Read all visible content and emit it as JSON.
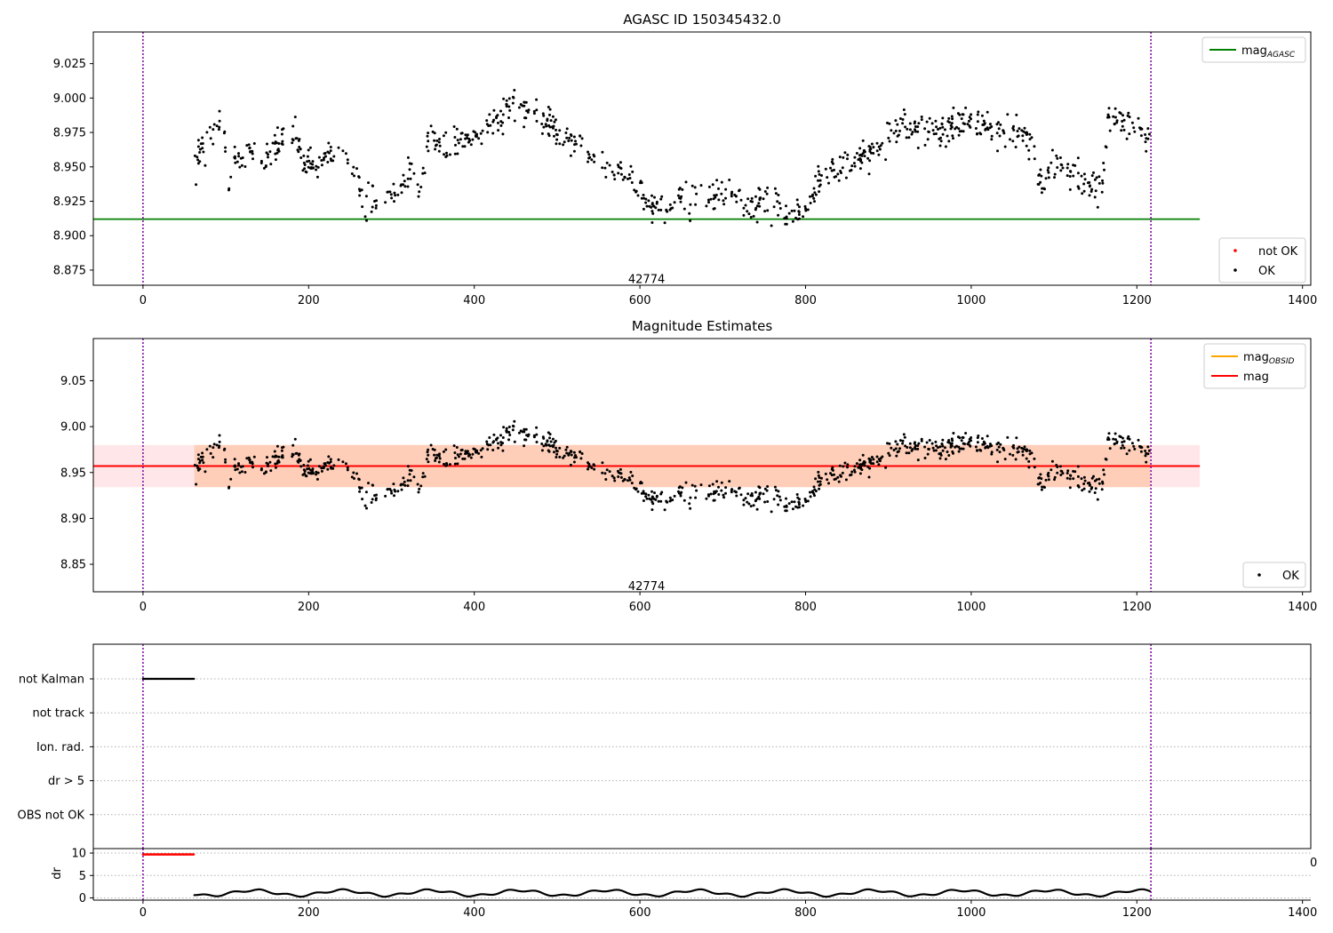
{
  "chart_data": [
    {
      "type": "scatter",
      "title": "AGASC ID 150345432.0",
      "xlabel": "",
      "ylabel": "",
      "xlim": [
        -60,
        1410
      ],
      "ylim": [
        8.864,
        9.048
      ],
      "xticks": [
        0,
        200,
        400,
        600,
        800,
        1000,
        1200,
        1400
      ],
      "yticks": [
        8.875,
        8.9,
        8.925,
        8.95,
        8.975,
        9.0,
        9.025
      ],
      "ytick_labels": [
        "8.875",
        "8.900",
        "8.925",
        "8.950",
        "8.975",
        "9.000",
        "9.025"
      ],
      "grid": false,
      "vlines": [
        0,
        1217
      ],
      "hlines": [
        {
          "name": "magAGASC",
          "y": 8.912,
          "x": [
            -60,
            1276
          ],
          "color": "#008000"
        }
      ],
      "annotation": {
        "text": "42774",
        "x": 608,
        "y": 8.869
      },
      "legends": [
        {
          "placement": "top-right",
          "entries": [
            {
              "label": "mag",
              "sub": "AGASC",
              "color": "#008000",
              "kind": "line"
            }
          ]
        },
        {
          "placement": "bottom-right",
          "entries": [
            {
              "label": "not OK",
              "color": "#ff0000",
              "kind": "dot"
            },
            {
              "label": "OK",
              "color": "#000000",
              "kind": "dot"
            }
          ]
        }
      ],
      "series": [
        {
          "name": "OK",
          "color": "#000000",
          "trend": [
            [
              62,
              8.94
            ],
            [
              70,
              8.968
            ],
            [
              90,
              8.978
            ],
            [
              97,
              8.992
            ],
            [
              102,
              8.925
            ],
            [
              110,
              8.955
            ],
            [
              130,
              8.958
            ],
            [
              150,
              8.96
            ],
            [
              180,
              8.975
            ],
            [
              195,
              8.952
            ],
            [
              210,
              8.95
            ],
            [
              230,
              8.962
            ],
            [
              245,
              8.96
            ],
            [
              255,
              8.945
            ],
            [
              270,
              8.92
            ],
            [
              290,
              8.928
            ],
            [
              310,
              8.935
            ],
            [
              325,
              8.945
            ],
            [
              335,
              8.93
            ],
            [
              345,
              8.972
            ],
            [
              360,
              8.965
            ],
            [
              390,
              8.968
            ],
            [
              410,
              8.975
            ],
            [
              430,
              8.985
            ],
            [
              450,
              8.995
            ],
            [
              470,
              8.99
            ],
            [
              490,
              8.98
            ],
            [
              510,
              8.97
            ],
            [
              530,
              8.965
            ],
            [
              545,
              8.955
            ],
            [
              560,
              8.945
            ],
            [
              580,
              8.945
            ],
            [
              600,
              8.935
            ],
            [
              615,
              8.92
            ],
            [
              640,
              8.925
            ],
            [
              660,
              8.925
            ],
            [
              690,
              8.93
            ],
            [
              710,
              8.93
            ],
            [
              730,
              8.92
            ],
            [
              750,
              8.93
            ],
            [
              770,
              8.915
            ],
            [
              790,
              8.918
            ],
            [
              800,
              8.922
            ],
            [
              820,
              8.945
            ],
            [
              840,
              8.95
            ],
            [
              860,
              8.955
            ],
            [
              880,
              8.962
            ],
            [
              900,
              8.97
            ],
            [
              920,
              8.98
            ],
            [
              950,
              8.975
            ],
            [
              980,
              8.98
            ],
            [
              1000,
              8.985
            ],
            [
              1020,
              8.978
            ],
            [
              1040,
              8.972
            ],
            [
              1060,
              8.975
            ],
            [
              1075,
              8.968
            ],
            [
              1085,
              8.935
            ],
            [
              1100,
              8.955
            ],
            [
              1120,
              8.945
            ],
            [
              1140,
              8.935
            ],
            [
              1158,
              8.935
            ],
            [
              1165,
              8.988
            ],
            [
              1180,
              8.985
            ],
            [
              1200,
              8.98
            ],
            [
              1216,
              8.97
            ]
          ],
          "noise": 0.008,
          "count": 920
        }
      ]
    },
    {
      "type": "scatter",
      "title": "Magnitude Estimates",
      "xlabel": "",
      "ylabel": "",
      "xlim": [
        -60,
        1410
      ],
      "ylim": [
        8.82,
        9.096
      ],
      "xticks": [
        0,
        200,
        400,
        600,
        800,
        1000,
        1200,
        1400
      ],
      "yticks": [
        8.85,
        8.9,
        8.95,
        9.0,
        9.05
      ],
      "ytick_labels": [
        "8.85",
        "8.90",
        "8.95",
        "9.00",
        "9.05"
      ],
      "grid": false,
      "vlines": [
        0,
        1217
      ],
      "hlines": [
        {
          "name": "mag",
          "y": 8.957,
          "x": [
            -60,
            1276
          ],
          "color": "#ff0000"
        }
      ],
      "bands": [
        {
          "name": "mag band",
          "y": [
            8.934,
            8.98
          ],
          "x": [
            -60,
            1276
          ],
          "color": "#ff8c9a",
          "opacity": 0.22
        },
        {
          "name": "magOBSID band",
          "y": [
            8.934,
            8.98
          ],
          "x": [
            62,
            1216
          ],
          "color": "#ffa060",
          "opacity": 0.35
        }
      ],
      "annotation": {
        "text": "42774",
        "x": 608,
        "y": 8.827
      },
      "legends": [
        {
          "placement": "top-right",
          "entries": [
            {
              "label": "mag",
              "sub": "OBSID",
              "color": "#ffa500",
              "kind": "line"
            },
            {
              "label": "mag",
              "color": "#ff0000",
              "kind": "line"
            }
          ]
        },
        {
          "placement": "bottom-right",
          "entries": [
            {
              "label": "OK",
              "color": "#000000",
              "kind": "dot"
            }
          ]
        }
      ],
      "series": [
        {
          "name": "OK",
          "color": "#000000",
          "same_as_panel": 0
        }
      ]
    },
    {
      "type": "scatter",
      "title": "",
      "xlim": [
        -60,
        1410
      ],
      "categories": [
        "not Kalman",
        "not track",
        "Ion. rad.",
        "dr > 5",
        "OBS not OK"
      ],
      "flags": [
        {
          "category": "not Kalman",
          "x": [
            0,
            62
          ],
          "color": "#000000"
        }
      ],
      "vlines": [
        0,
        1217
      ],
      "grid": "y-dotted"
    },
    {
      "type": "line",
      "title": "",
      "xlabel": "",
      "ylabel": "dr",
      "xlim": [
        -60,
        1410
      ],
      "ylim": [
        -0.5,
        11
      ],
      "xticks": [
        0,
        200,
        400,
        600,
        800,
        1000,
        1200,
        1400
      ],
      "yticks": [
        0,
        5,
        10
      ],
      "ytick_labels": [
        "0",
        "5",
        "10"
      ],
      "vlines": [
        0,
        1217
      ],
      "stray_label": "0",
      "series": [
        {
          "name": "dr > 5",
          "color": "#ff0000",
          "x": [
            0,
            62
          ],
          "y": 9.7
        },
        {
          "name": "dr",
          "color": "#000000",
          "x": [
            62,
            1216
          ],
          "y_base": 1.1,
          "amp": 0.6
        }
      ]
    }
  ]
}
